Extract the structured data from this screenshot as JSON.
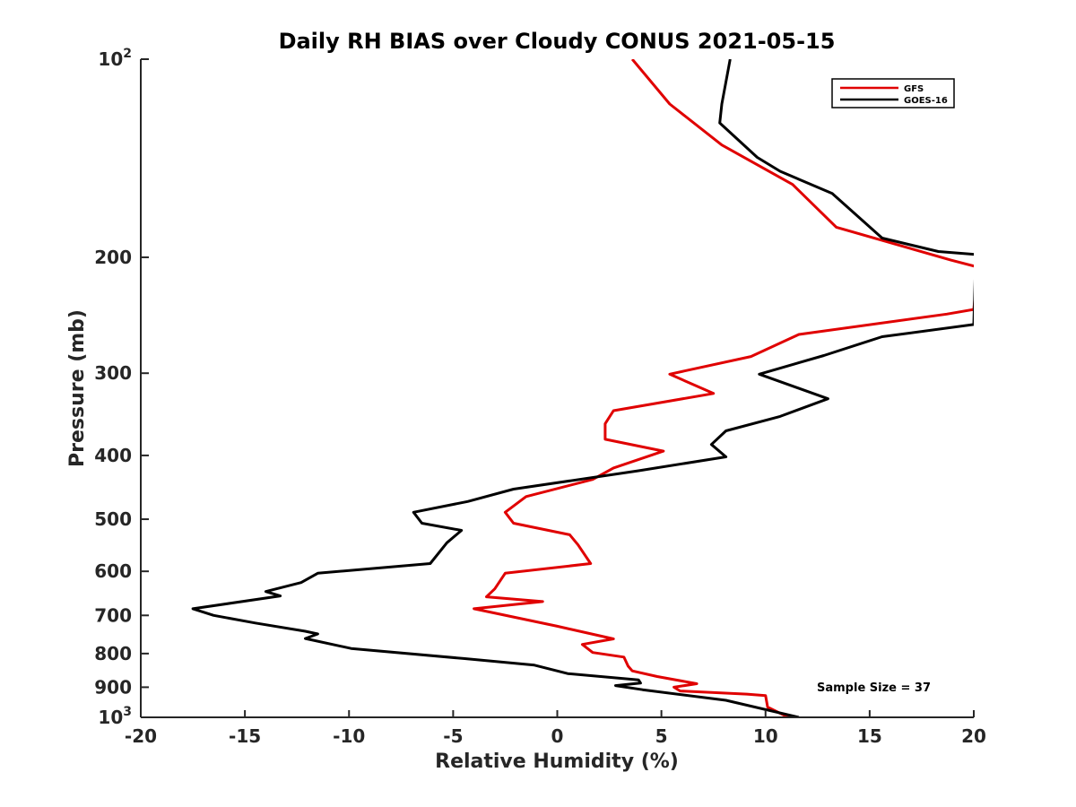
{
  "chart_data": {
    "type": "line",
    "title": "Daily RH BIAS over Cloudy CONUS 2021-05-15",
    "xlabel": "Relative Humidity (%)",
    "ylabel": "Pressure (mb)",
    "xlim": [
      -20,
      20
    ],
    "ylim": [
      100,
      1000
    ],
    "y_scale": "log",
    "y_reversed": true,
    "x_ticks": [
      -20,
      -15,
      -10,
      -5,
      0,
      5,
      10,
      15,
      20
    ],
    "x_tick_labels": [
      "-20",
      "-15",
      "-10",
      "-5",
      "0",
      "5",
      "10",
      "15",
      "20"
    ],
    "y_ticks": [
      100,
      200,
      300,
      400,
      500,
      600,
      700,
      800,
      900,
      1000
    ],
    "y_tick_labels": [
      {
        "base": "10",
        "exp": "2"
      },
      {
        "base": "200",
        "exp": ""
      },
      {
        "base": "300",
        "exp": ""
      },
      {
        "base": "400",
        "exp": ""
      },
      {
        "base": "500",
        "exp": ""
      },
      {
        "base": "600",
        "exp": ""
      },
      {
        "base": "700",
        "exp": ""
      },
      {
        "base": "800",
        "exp": ""
      },
      {
        "base": "900",
        "exp": ""
      },
      {
        "base": "10",
        "exp": "3"
      }
    ],
    "grid": false,
    "legend_position": "top-right",
    "annotation": "Sample Size = 37",
    "series": [
      {
        "name": "GFS",
        "color": "#e00000",
        "points": [
          [
            3.6,
            100
          ],
          [
            5.4,
            117
          ],
          [
            7.9,
            135
          ],
          [
            11.3,
            155
          ],
          [
            13.4,
            180
          ],
          [
            18.9,
            202
          ],
          [
            20.2,
            207
          ],
          [
            20,
            240
          ],
          [
            18.7,
            244
          ],
          [
            11.6,
            262
          ],
          [
            9.3,
            283
          ],
          [
            5.4,
            301
          ],
          [
            7.5,
            322
          ],
          [
            2.7,
            342
          ],
          [
            2.3,
            358
          ],
          [
            2.3,
            378
          ],
          [
            5.1,
            394
          ],
          [
            2.7,
            418
          ],
          [
            1.7,
            435
          ],
          [
            -1.5,
            462
          ],
          [
            -2.5,
            488
          ],
          [
            -2.1,
            507
          ],
          [
            0.6,
            528
          ],
          [
            1.0,
            547
          ],
          [
            1.6,
            584
          ],
          [
            -2.5,
            604
          ],
          [
            -3.0,
            638
          ],
          [
            -3.4,
            656
          ],
          [
            -0.7,
            667
          ],
          [
            -4.0,
            684
          ],
          [
            0.0,
            727
          ],
          [
            2.7,
            760
          ],
          [
            1.2,
            775
          ],
          [
            1.7,
            797
          ],
          [
            3.2,
            810
          ],
          [
            3.4,
            836
          ],
          [
            3.6,
            850
          ],
          [
            4.8,
            867
          ],
          [
            6.7,
            889
          ],
          [
            5.6,
            900
          ],
          [
            5.9,
            912
          ],
          [
            9.1,
            922
          ],
          [
            10.0,
            927
          ],
          [
            10.1,
            965
          ],
          [
            11.1,
            1000
          ]
        ]
      },
      {
        "name": "GOES-16",
        "color": "#000000",
        "points": [
          [
            8.3,
            100
          ],
          [
            7.9,
            117
          ],
          [
            7.8,
            125
          ],
          [
            9.6,
            141
          ],
          [
            10.7,
            148
          ],
          [
            13.2,
            160
          ],
          [
            15.6,
            187
          ],
          [
            18.3,
            196
          ],
          [
            20.1,
            198
          ],
          [
            20,
            253
          ],
          [
            15.6,
            264
          ],
          [
            12.8,
            282
          ],
          [
            9.7,
            301
          ],
          [
            13.0,
            328
          ],
          [
            10.7,
            349
          ],
          [
            8.1,
            367
          ],
          [
            7.4,
            385
          ],
          [
            8.1,
            402
          ],
          [
            3.9,
            422
          ],
          [
            -2.1,
            450
          ],
          [
            -4.3,
            470
          ],
          [
            -6.9,
            488
          ],
          [
            -6.5,
            507
          ],
          [
            -4.6,
            520
          ],
          [
            -5.3,
            543
          ],
          [
            -6.1,
            584
          ],
          [
            -11.5,
            604
          ],
          [
            -12.3,
            624
          ],
          [
            -14.0,
            644
          ],
          [
            -13.3,
            654
          ],
          [
            -17.5,
            684
          ],
          [
            -16.5,
            700
          ],
          [
            -14.5,
            719
          ],
          [
            -12.1,
            740
          ],
          [
            -11.5,
            747
          ],
          [
            -12.1,
            759
          ],
          [
            -9.9,
            786
          ],
          [
            -4.5,
            814
          ],
          [
            -1.1,
            833
          ],
          [
            0.5,
            858
          ],
          [
            3.9,
            877
          ],
          [
            4.0,
            887
          ],
          [
            2.8,
            895
          ],
          [
            4.1,
            908
          ],
          [
            8.1,
            942
          ],
          [
            11.6,
            1000
          ]
        ]
      }
    ]
  }
}
